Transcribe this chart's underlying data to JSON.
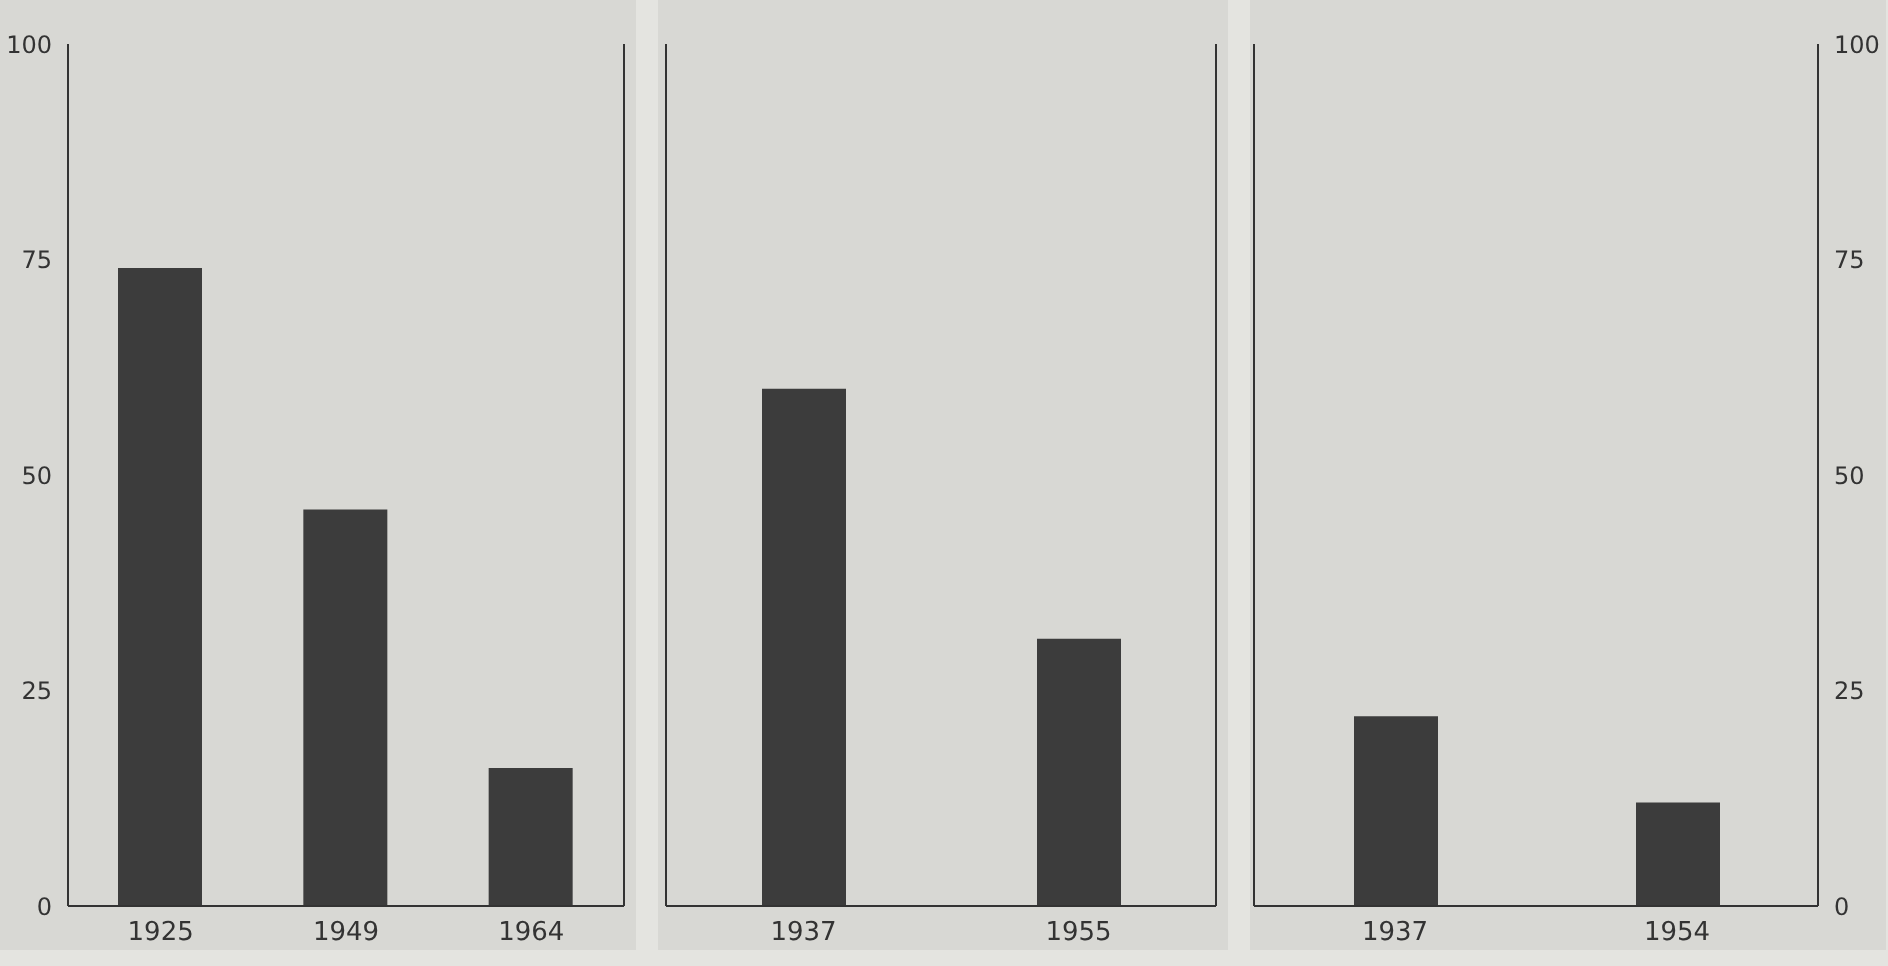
{
  "chart_data": [
    {
      "type": "bar",
      "categories": [
        "1925",
        "1949",
        "1964"
      ],
      "series": [
        {
          "color": "#3c3c3c",
          "values": [
            74,
            46,
            16
          ]
        }
      ],
      "ylim": [
        0,
        100
      ],
      "yticks": [
        0,
        25,
        50,
        75,
        100
      ],
      "grid": false,
      "legend": false
    },
    {
      "type": "bar",
      "categories": [
        "1937",
        "1955"
      ],
      "series": [
        {
          "color": "#3c3c3c",
          "values": [
            60,
            31
          ]
        }
      ],
      "ylim": [
        0,
        100
      ],
      "yticks": [
        0,
        25,
        50,
        75,
        100
      ],
      "tick_labels": "x",
      "grid": false,
      "legend": false
    },
    {
      "type": "bar",
      "categories": [
        "1937",
        "1954"
      ],
      "series": [
        {
          "color": "#3c3c3c",
          "values": [
            22,
            12
          ],
          "axis": "y2"
        }
      ],
      "y2lim": [
        0,
        100
      ],
      "y2ticks": [
        0,
        25,
        50,
        75,
        100
      ],
      "grid": false,
      "legend": false
    }
  ]
}
